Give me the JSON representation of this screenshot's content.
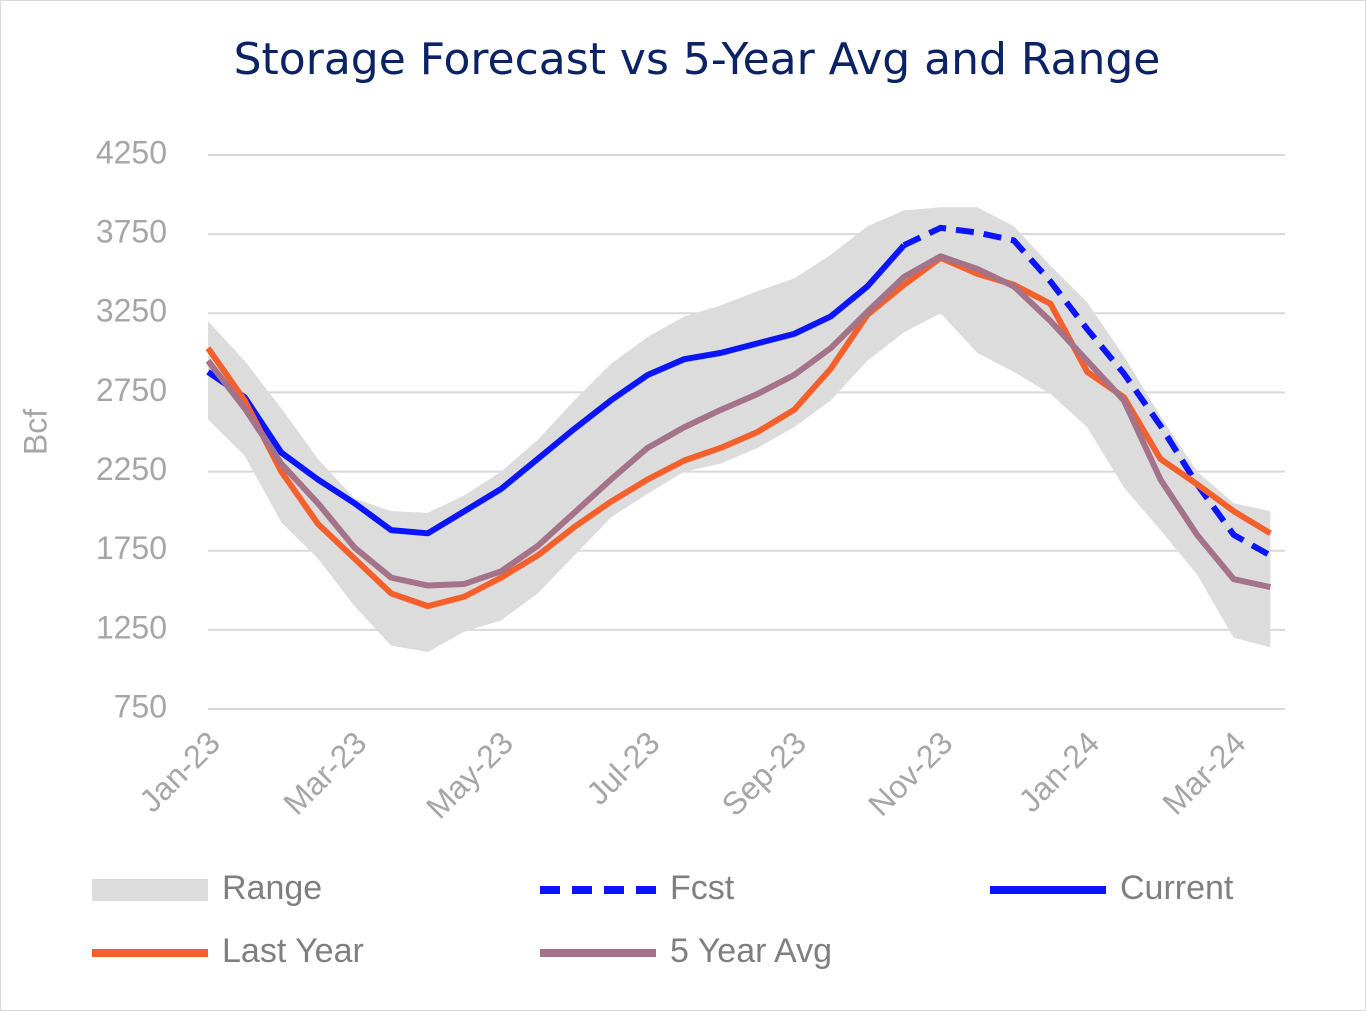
{
  "chart_data": {
    "type": "line",
    "title": "Storage Forecast vs 5-Year Avg and Range",
    "ylabel": "Bcf",
    "x": [
      0,
      0.5,
      1,
      1.5,
      2,
      2.5,
      3,
      3.5,
      4,
      4.5,
      5,
      5.5,
      6,
      6.5,
      7,
      7.5,
      8,
      8.5,
      9,
      9.5,
      10,
      10.5,
      11,
      11.5,
      12,
      12.5,
      13,
      13.5,
      14,
      14.5
    ],
    "xlim": [
      0,
      14.7
    ],
    "xticks": [
      {
        "value": 0,
        "label": "Jan-23"
      },
      {
        "value": 2,
        "label": "Mar-23"
      },
      {
        "value": 4,
        "label": "May-23"
      },
      {
        "value": 6,
        "label": "Jul-23"
      },
      {
        "value": 8,
        "label": "Sep-23"
      },
      {
        "value": 10,
        "label": "Nov-23"
      },
      {
        "value": 12,
        "label": "Jan-24"
      },
      {
        "value": 14,
        "label": "Mar-24"
      }
    ],
    "ylim": [
      750,
      4250
    ],
    "yticks": [
      750,
      1250,
      1750,
      2250,
      2750,
      3250,
      3750,
      4250
    ],
    "grid": true,
    "series": [
      {
        "name": "Range",
        "color": "#dcdcdc",
        "style": "band",
        "high": [
          3200,
          2950,
          2650,
          2330,
          2080,
          2000,
          1990,
          2100,
          2250,
          2450,
          2700,
          2930,
          3100,
          3230,
          3300,
          3390,
          3470,
          3620,
          3800,
          3900,
          3920,
          3920,
          3800,
          3550,
          3320,
          2980,
          2600,
          2250,
          2050,
          2000
        ],
        "low": [
          2580,
          2350,
          1930,
          1700,
          1400,
          1150,
          1110,
          1240,
          1310,
          1480,
          1720,
          1960,
          2110,
          2250,
          2300,
          2400,
          2530,
          2700,
          2950,
          3130,
          3250,
          3000,
          2880,
          2740,
          2530,
          2150,
          1880,
          1600,
          1200,
          1140
        ]
      },
      {
        "name": "Fcst",
        "color": "#0a14ff",
        "style": "dashed",
        "values": [
          null,
          null,
          null,
          null,
          null,
          null,
          null,
          null,
          null,
          null,
          null,
          null,
          null,
          null,
          null,
          null,
          null,
          null,
          null,
          3680,
          3790,
          3760,
          3710,
          3450,
          3150,
          2870,
          2540,
          2170,
          1850,
          1720
        ]
      },
      {
        "name": "Current",
        "color": "#0a14ff",
        "style": "solid",
        "values": [
          2880,
          2720,
          2370,
          2200,
          2050,
          1880,
          1860,
          2000,
          2140,
          2330,
          2520,
          2700,
          2860,
          2960,
          3000,
          3060,
          3120,
          3230,
          3420,
          3680,
          null,
          null,
          null,
          null,
          null,
          null,
          null,
          null,
          null,
          null
        ]
      },
      {
        "name": "Last Year",
        "color": "#f4602c",
        "style": "solid",
        "values": [
          3030,
          2700,
          2250,
          1920,
          1700,
          1480,
          1400,
          1460,
          1580,
          1720,
          1900,
          2060,
          2200,
          2320,
          2400,
          2500,
          2640,
          2900,
          3240,
          3430,
          3600,
          3500,
          3430,
          3310,
          2880,
          2720,
          2330,
          2170,
          2000,
          1860
        ]
      },
      {
        "name": "5 Year Avg",
        "color": "#a47289",
        "style": "solid",
        "values": [
          2950,
          2650,
          2300,
          2050,
          1770,
          1580,
          1530,
          1540,
          1620,
          1780,
          1990,
          2200,
          2400,
          2530,
          2640,
          2740,
          2860,
          3030,
          3260,
          3480,
          3610,
          3530,
          3420,
          3200,
          2950,
          2700,
          2200,
          1850,
          1570,
          1520
        ]
      }
    ]
  }
}
